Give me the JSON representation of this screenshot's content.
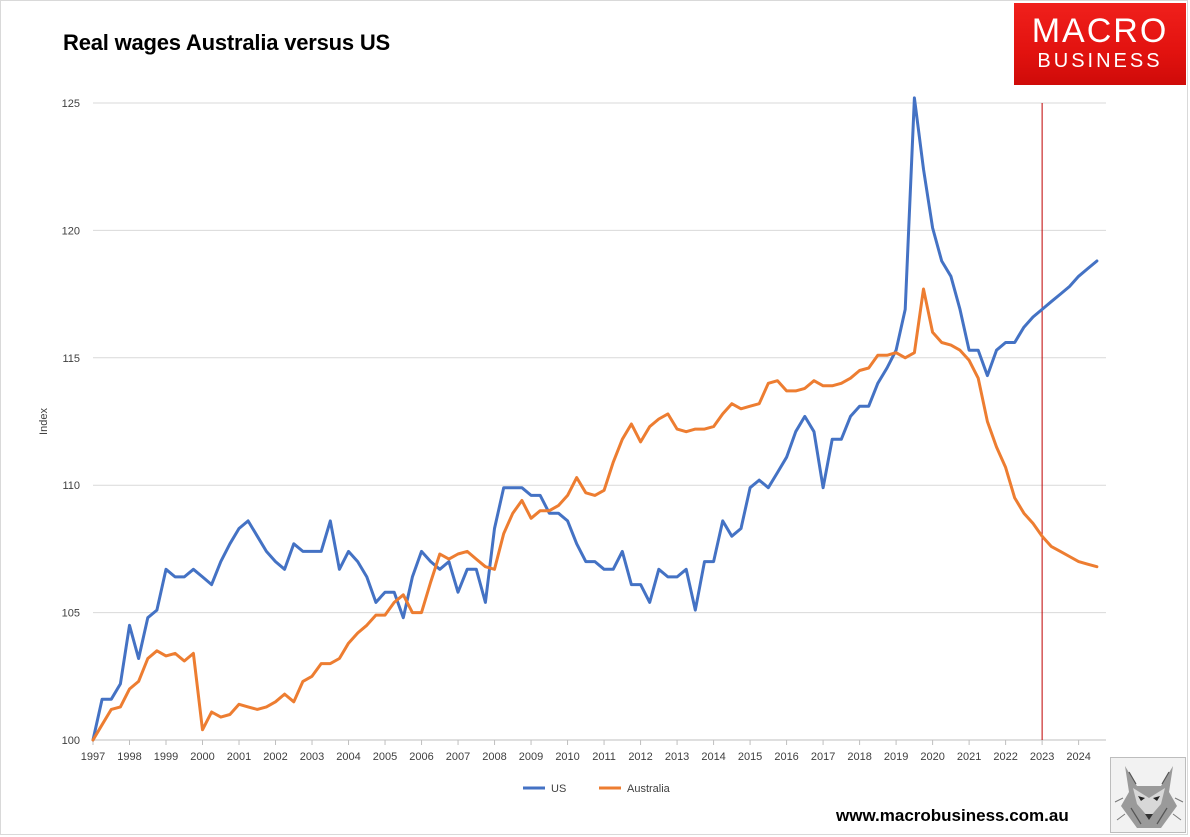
{
  "title": "Real wages Australia versus US",
  "logo": {
    "line1": "MACRO",
    "line2": "BUSINESS",
    "color": "#e8130f"
  },
  "footer_url": "www.macrobusiness.com.au",
  "chart_data": {
    "type": "line",
    "title": "Real wages Australia versus US",
    "xlabel": "",
    "ylabel": "Index",
    "ylim": [
      100,
      125
    ],
    "xlim": [
      1997,
      2024.75
    ],
    "yticks": [
      100,
      105,
      110,
      115,
      120,
      125
    ],
    "xticks": [
      1997,
      1998,
      1999,
      2000,
      2001,
      2002,
      2003,
      2004,
      2005,
      2006,
      2007,
      2008,
      2009,
      2010,
      2011,
      2012,
      2013,
      2014,
      2015,
      2016,
      2017,
      2018,
      2019,
      2020,
      2021,
      2022,
      2023,
      2024
    ],
    "grid": "horizontal",
    "legend_position": "bottom",
    "reference_line": {
      "x": 2023,
      "color": "#c00000"
    },
    "series": [
      {
        "name": "US",
        "color": "#4472c4",
        "points": [
          [
            1997.0,
            100.0
          ],
          [
            1997.25,
            101.6
          ],
          [
            1997.5,
            101.6
          ],
          [
            1997.75,
            102.2
          ],
          [
            1998.0,
            104.5
          ],
          [
            1998.25,
            103.2
          ],
          [
            1998.5,
            104.8
          ],
          [
            1998.75,
            105.1
          ],
          [
            1999.0,
            106.7
          ],
          [
            1999.25,
            106.4
          ],
          [
            1999.5,
            106.4
          ],
          [
            1999.75,
            106.7
          ],
          [
            2000.0,
            106.4
          ],
          [
            2000.25,
            106.1
          ],
          [
            2000.5,
            107.0
          ],
          [
            2000.75,
            107.7
          ],
          [
            2001.0,
            108.3
          ],
          [
            2001.25,
            108.6
          ],
          [
            2001.5,
            108.0
          ],
          [
            2001.75,
            107.4
          ],
          [
            2002.0,
            107.0
          ],
          [
            2002.25,
            106.7
          ],
          [
            2002.5,
            107.7
          ],
          [
            2002.75,
            107.4
          ],
          [
            2003.0,
            107.4
          ],
          [
            2003.25,
            107.4
          ],
          [
            2003.5,
            108.6
          ],
          [
            2003.75,
            106.7
          ],
          [
            2004.0,
            107.4
          ],
          [
            2004.25,
            107.0
          ],
          [
            2004.5,
            106.4
          ],
          [
            2004.75,
            105.4
          ],
          [
            2005.0,
            105.8
          ],
          [
            2005.25,
            105.8
          ],
          [
            2005.5,
            104.8
          ],
          [
            2005.75,
            106.4
          ],
          [
            2006.0,
            107.4
          ],
          [
            2006.25,
            107.0
          ],
          [
            2006.5,
            106.7
          ],
          [
            2006.75,
            107.0
          ],
          [
            2007.0,
            105.8
          ],
          [
            2007.25,
            106.7
          ],
          [
            2007.5,
            106.7
          ],
          [
            2007.75,
            105.4
          ],
          [
            2008.0,
            108.3
          ],
          [
            2008.25,
            109.9
          ],
          [
            2008.5,
            109.9
          ],
          [
            2008.75,
            109.9
          ],
          [
            2009.0,
            109.6
          ],
          [
            2009.25,
            109.6
          ],
          [
            2009.5,
            108.9
          ],
          [
            2009.75,
            108.9
          ],
          [
            2010.0,
            108.6
          ],
          [
            2010.25,
            107.7
          ],
          [
            2010.5,
            107.0
          ],
          [
            2010.75,
            107.0
          ],
          [
            2011.0,
            106.7
          ],
          [
            2011.25,
            106.7
          ],
          [
            2011.5,
            107.4
          ],
          [
            2011.75,
            106.1
          ],
          [
            2012.0,
            106.1
          ],
          [
            2012.25,
            105.4
          ],
          [
            2012.5,
            106.7
          ],
          [
            2012.75,
            106.4
          ],
          [
            2013.0,
            106.4
          ],
          [
            2013.25,
            106.7
          ],
          [
            2013.5,
            105.1
          ],
          [
            2013.75,
            107.0
          ],
          [
            2014.0,
            107.0
          ],
          [
            2014.25,
            108.6
          ],
          [
            2014.5,
            108.0
          ],
          [
            2014.75,
            108.3
          ],
          [
            2015.0,
            109.9
          ],
          [
            2015.25,
            110.2
          ],
          [
            2015.5,
            109.9
          ],
          [
            2015.75,
            110.5
          ],
          [
            2016.0,
            111.1
          ],
          [
            2016.25,
            112.1
          ],
          [
            2016.5,
            112.7
          ],
          [
            2016.75,
            112.1
          ],
          [
            2017.0,
            109.9
          ],
          [
            2017.25,
            111.8
          ],
          [
            2017.5,
            111.8
          ],
          [
            2017.75,
            112.7
          ],
          [
            2018.0,
            113.1
          ],
          [
            2018.25,
            113.1
          ],
          [
            2018.5,
            114.0
          ],
          [
            2018.75,
            114.6
          ],
          [
            2019.0,
            115.3
          ],
          [
            2019.25,
            116.9
          ],
          [
            2019.5,
            125.2
          ],
          [
            2019.75,
            122.4
          ],
          [
            2020.0,
            120.1
          ],
          [
            2020.25,
            118.8
          ],
          [
            2020.5,
            118.2
          ],
          [
            2020.75,
            116.9
          ],
          [
            2021.0,
            115.3
          ],
          [
            2021.25,
            115.3
          ],
          [
            2021.5,
            114.3
          ],
          [
            2021.75,
            115.3
          ],
          [
            2022.0,
            115.6
          ],
          [
            2022.25,
            115.6
          ],
          [
            2022.5,
            116.2
          ],
          [
            2022.75,
            116.6
          ],
          [
            2023.0,
            116.9
          ],
          [
            2023.25,
            117.2
          ],
          [
            2023.5,
            117.5
          ],
          [
            2023.75,
            117.8
          ],
          [
            2024.0,
            118.2
          ],
          [
            2024.25,
            118.5
          ],
          [
            2024.5,
            118.8
          ]
        ]
      },
      {
        "name": "Australia",
        "color": "#ed7d31",
        "points": [
          [
            1997.0,
            100.0
          ],
          [
            1997.25,
            100.6
          ],
          [
            1997.5,
            101.2
          ],
          [
            1997.75,
            101.3
          ],
          [
            1998.0,
            102.0
          ],
          [
            1998.25,
            102.3
          ],
          [
            1998.5,
            103.2
          ],
          [
            1998.75,
            103.5
          ],
          [
            1999.0,
            103.3
          ],
          [
            1999.25,
            103.4
          ],
          [
            1999.5,
            103.1
          ],
          [
            1999.75,
            103.4
          ],
          [
            2000.0,
            100.4
          ],
          [
            2000.25,
            101.1
          ],
          [
            2000.5,
            100.9
          ],
          [
            2000.75,
            101.0
          ],
          [
            2001.0,
            101.4
          ],
          [
            2001.25,
            101.3
          ],
          [
            2001.5,
            101.2
          ],
          [
            2001.75,
            101.3
          ],
          [
            2002.0,
            101.5
          ],
          [
            2002.25,
            101.8
          ],
          [
            2002.5,
            101.5
          ],
          [
            2002.75,
            102.3
          ],
          [
            2003.0,
            102.5
          ],
          [
            2003.25,
            103.0
          ],
          [
            2003.5,
            103.0
          ],
          [
            2003.75,
            103.2
          ],
          [
            2004.0,
            103.8
          ],
          [
            2004.25,
            104.2
          ],
          [
            2004.5,
            104.5
          ],
          [
            2004.75,
            104.9
          ],
          [
            2005.0,
            104.9
          ],
          [
            2005.25,
            105.4
          ],
          [
            2005.5,
            105.7
          ],
          [
            2005.75,
            105.0
          ],
          [
            2006.0,
            105.0
          ],
          [
            2006.25,
            106.2
          ],
          [
            2006.5,
            107.3
          ],
          [
            2006.75,
            107.1
          ],
          [
            2007.0,
            107.3
          ],
          [
            2007.25,
            107.4
          ],
          [
            2007.5,
            107.1
          ],
          [
            2007.75,
            106.8
          ],
          [
            2008.0,
            106.7
          ],
          [
            2008.25,
            108.1
          ],
          [
            2008.5,
            108.9
          ],
          [
            2008.75,
            109.4
          ],
          [
            2009.0,
            108.7
          ],
          [
            2009.25,
            109.0
          ],
          [
            2009.5,
            109.0
          ],
          [
            2009.75,
            109.2
          ],
          [
            2010.0,
            109.6
          ],
          [
            2010.25,
            110.3
          ],
          [
            2010.5,
            109.7
          ],
          [
            2010.75,
            109.6
          ],
          [
            2011.0,
            109.8
          ],
          [
            2011.25,
            110.9
          ],
          [
            2011.5,
            111.8
          ],
          [
            2011.75,
            112.4
          ],
          [
            2012.0,
            111.7
          ],
          [
            2012.25,
            112.3
          ],
          [
            2012.5,
            112.6
          ],
          [
            2012.75,
            112.8
          ],
          [
            2013.0,
            112.2
          ],
          [
            2013.25,
            112.1
          ],
          [
            2013.5,
            112.2
          ],
          [
            2013.75,
            112.2
          ],
          [
            2014.0,
            112.3
          ],
          [
            2014.25,
            112.8
          ],
          [
            2014.5,
            113.2
          ],
          [
            2014.75,
            113.0
          ],
          [
            2015.0,
            113.1
          ],
          [
            2015.25,
            113.2
          ],
          [
            2015.5,
            114.0
          ],
          [
            2015.75,
            114.1
          ],
          [
            2016.0,
            113.7
          ],
          [
            2016.25,
            113.7
          ],
          [
            2016.5,
            113.8
          ],
          [
            2016.75,
            114.1
          ],
          [
            2017.0,
            113.9
          ],
          [
            2017.25,
            113.9
          ],
          [
            2017.5,
            114.0
          ],
          [
            2017.75,
            114.2
          ],
          [
            2018.0,
            114.5
          ],
          [
            2018.25,
            114.6
          ],
          [
            2018.5,
            115.1
          ],
          [
            2018.75,
            115.1
          ],
          [
            2019.0,
            115.2
          ],
          [
            2019.25,
            115.0
          ],
          [
            2019.5,
            115.2
          ],
          [
            2019.75,
            117.7
          ],
          [
            2020.0,
            116.0
          ],
          [
            2020.25,
            115.6
          ],
          [
            2020.5,
            115.5
          ],
          [
            2020.75,
            115.3
          ],
          [
            2021.0,
            114.9
          ],
          [
            2021.25,
            114.2
          ],
          [
            2021.5,
            112.5
          ],
          [
            2021.75,
            111.5
          ],
          [
            2022.0,
            110.7
          ],
          [
            2022.25,
            109.5
          ],
          [
            2022.5,
            108.9
          ],
          [
            2022.75,
            108.5
          ],
          [
            2023.0,
            108.0
          ],
          [
            2023.25,
            107.6
          ],
          [
            2023.5,
            107.4
          ],
          [
            2023.75,
            107.2
          ],
          [
            2024.0,
            107.0
          ],
          [
            2024.25,
            106.9
          ],
          [
            2024.5,
            106.8
          ]
        ]
      }
    ]
  }
}
